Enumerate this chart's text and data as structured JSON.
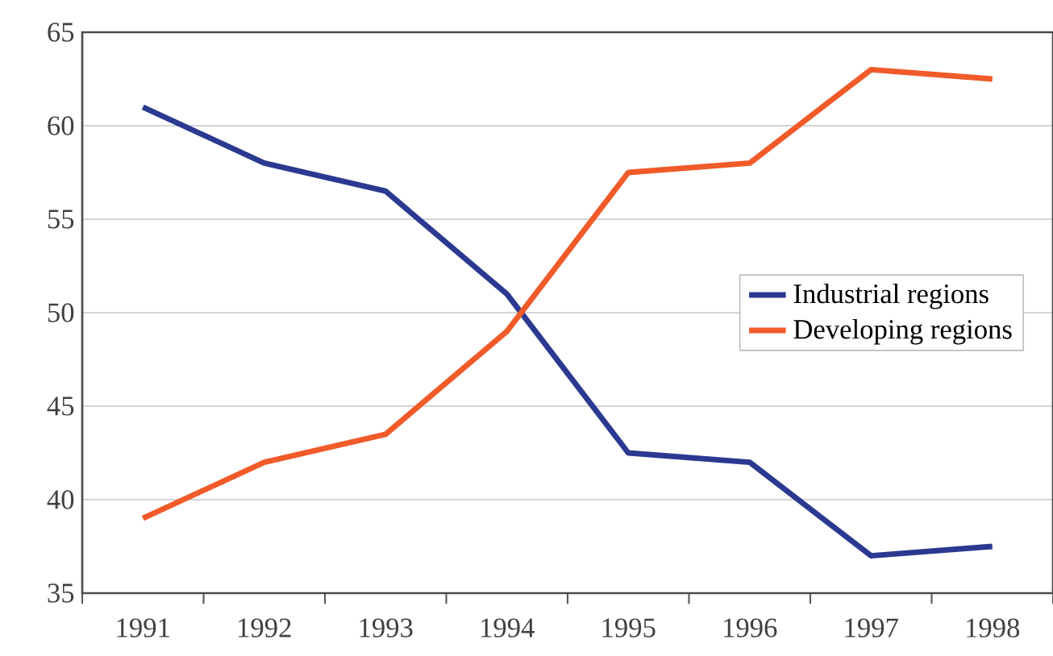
{
  "chart_data": {
    "type": "line",
    "categories": [
      "1991",
      "1992",
      "1993",
      "1994",
      "1995",
      "1996",
      "1997",
      "1998"
    ],
    "series": [
      {
        "name": "Industrial regions",
        "color": "#2b3990",
        "values": [
          61,
          58,
          56.5,
          51,
          42.5,
          42,
          37,
          37.5
        ]
      },
      {
        "name": "Developing regions",
        "color": "#f15a29",
        "values": [
          39,
          42,
          43.5,
          49,
          57.5,
          58,
          63,
          62.5
        ]
      }
    ],
    "ylim": [
      35,
      65
    ],
    "yticks": [
      35,
      40,
      45,
      50,
      55,
      60,
      65
    ],
    "grid": "y",
    "legend": "right",
    "marker": "none",
    "line_style": "solid"
  }
}
